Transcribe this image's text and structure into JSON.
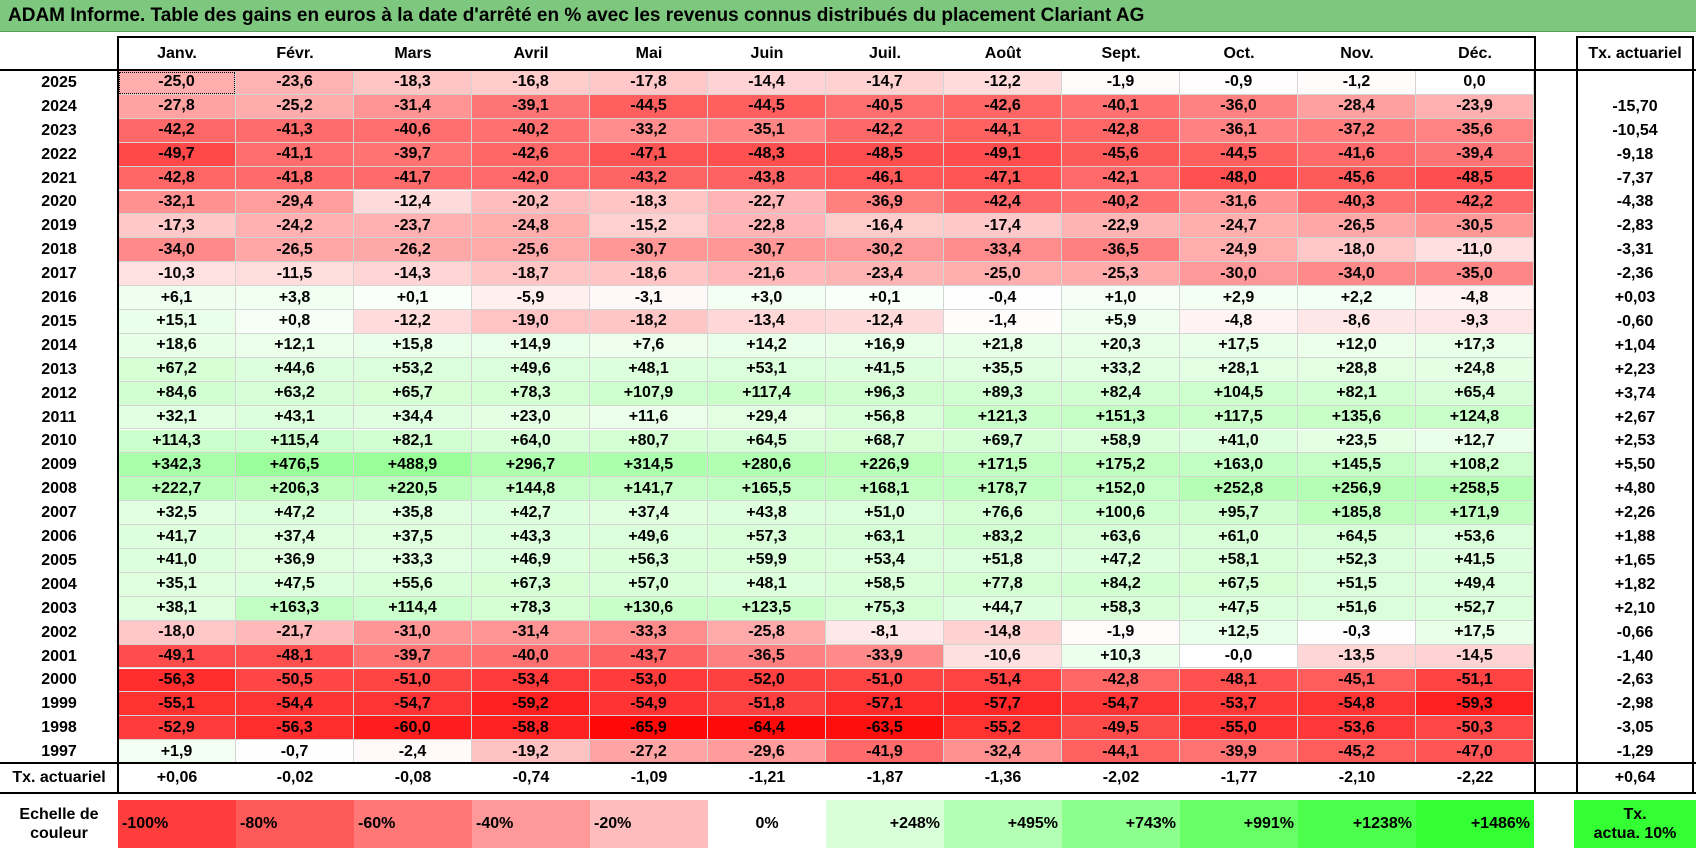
{
  "title": "ADAM Informe. Table des gains en euros à la date d'arrêté en % avec les revenus connus distribués du placement Clariant AG",
  "months": [
    "Janv.",
    "Févr.",
    "Mars",
    "Avril",
    "Mai",
    "Juin",
    "Juil.",
    "Août",
    "Sept.",
    "Oct.",
    "Nov.",
    "Déc."
  ],
  "rate_header": "Tx. actuariel",
  "rows": [
    {
      "year": "2025",
      "values": [
        "-25,0",
        "-23,6",
        "-18,3",
        "-16,8",
        "-17,8",
        "-14,4",
        "-14,7",
        "-12,2",
        "-1,9",
        "-0,9",
        "-1,2",
        "0,0"
      ],
      "rate": ""
    },
    {
      "year": "2024",
      "values": [
        "-27,8",
        "-25,2",
        "-31,4",
        "-39,1",
        "-44,5",
        "-44,5",
        "-40,5",
        "-42,6",
        "-40,1",
        "-36,0",
        "-28,4",
        "-23,9"
      ],
      "rate": "-15,70"
    },
    {
      "year": "2023",
      "values": [
        "-42,2",
        "-41,3",
        "-40,6",
        "-40,2",
        "-33,2",
        "-35,1",
        "-42,2",
        "-44,1",
        "-42,8",
        "-36,1",
        "-37,2",
        "-35,6"
      ],
      "rate": "-10,54"
    },
    {
      "year": "2022",
      "values": [
        "-49,7",
        "-41,1",
        "-39,7",
        "-42,6",
        "-47,1",
        "-48,3",
        "-48,5",
        "-49,1",
        "-45,6",
        "-44,5",
        "-41,6",
        "-39,4"
      ],
      "rate": "-9,18"
    },
    {
      "year": "2021",
      "values": [
        "-42,8",
        "-41,8",
        "-41,7",
        "-42,0",
        "-43,2",
        "-43,8",
        "-46,1",
        "-47,1",
        "-42,1",
        "-48,0",
        "-45,6",
        "-48,5"
      ],
      "rate": "-7,37"
    },
    {
      "year": "2020",
      "values": [
        "-32,1",
        "-29,4",
        "-12,4",
        "-20,2",
        "-18,3",
        "-22,7",
        "-36,9",
        "-42,4",
        "-40,2",
        "-31,6",
        "-40,3",
        "-42,2"
      ],
      "rate": "-4,38"
    },
    {
      "year": "2019",
      "values": [
        "-17,3",
        "-24,2",
        "-23,7",
        "-24,8",
        "-15,2",
        "-22,8",
        "-16,4",
        "-17,4",
        "-22,9",
        "-24,7",
        "-26,5",
        "-30,5"
      ],
      "rate": "-2,83"
    },
    {
      "year": "2018",
      "values": [
        "-34,0",
        "-26,5",
        "-26,2",
        "-25,6",
        "-30,7",
        "-30,7",
        "-30,2",
        "-33,4",
        "-36,5",
        "-24,9",
        "-18,0",
        "-11,0"
      ],
      "rate": "-3,31"
    },
    {
      "year": "2017",
      "values": [
        "-10,3",
        "-11,5",
        "-14,3",
        "-18,7",
        "-18,6",
        "-21,6",
        "-23,4",
        "-25,0",
        "-25,3",
        "-30,0",
        "-34,0",
        "-35,0"
      ],
      "rate": "-2,36"
    },
    {
      "year": "2016",
      "values": [
        "+6,1",
        "+3,8",
        "+0,1",
        "-5,9",
        "-3,1",
        "+3,0",
        "+0,1",
        "-0,4",
        "+1,0",
        "+2,9",
        "+2,2",
        "-4,8"
      ],
      "rate": "+0,03"
    },
    {
      "year": "2015",
      "values": [
        "+15,1",
        "+0,8",
        "-12,2",
        "-19,0",
        "-18,2",
        "-13,4",
        "-12,4",
        "-1,4",
        "+5,9",
        "-4,8",
        "-8,6",
        "-9,3"
      ],
      "rate": "-0,60"
    },
    {
      "year": "2014",
      "values": [
        "+18,6",
        "+12,1",
        "+15,8",
        "+14,9",
        "+7,6",
        "+14,2",
        "+16,9",
        "+21,8",
        "+20,3",
        "+17,5",
        "+12,0",
        "+17,3"
      ],
      "rate": "+1,04"
    },
    {
      "year": "2013",
      "values": [
        "+67,2",
        "+44,6",
        "+53,2",
        "+49,6",
        "+48,1",
        "+53,1",
        "+41,5",
        "+35,5",
        "+33,2",
        "+28,1",
        "+28,8",
        "+24,8"
      ],
      "rate": "+2,23"
    },
    {
      "year": "2012",
      "values": [
        "+84,6",
        "+63,2",
        "+65,7",
        "+78,3",
        "+107,9",
        "+117,4",
        "+96,3",
        "+89,3",
        "+82,4",
        "+104,5",
        "+82,1",
        "+65,4"
      ],
      "rate": "+3,74"
    },
    {
      "year": "2011",
      "values": [
        "+32,1",
        "+43,1",
        "+34,4",
        "+23,0",
        "+11,6",
        "+29,4",
        "+56,8",
        "+121,3",
        "+151,3",
        "+117,5",
        "+135,6",
        "+124,8"
      ],
      "rate": "+2,67"
    },
    {
      "year": "2010",
      "values": [
        "+114,3",
        "+115,4",
        "+82,1",
        "+64,0",
        "+80,7",
        "+64,5",
        "+68,7",
        "+69,7",
        "+58,9",
        "+41,0",
        "+23,5",
        "+12,7"
      ],
      "rate": "+2,53"
    },
    {
      "year": "2009",
      "values": [
        "+342,3",
        "+476,5",
        "+488,9",
        "+296,7",
        "+314,5",
        "+280,6",
        "+226,9",
        "+171,5",
        "+175,2",
        "+163,0",
        "+145,5",
        "+108,2"
      ],
      "rate": "+5,50"
    },
    {
      "year": "2008",
      "values": [
        "+222,7",
        "+206,3",
        "+220,5",
        "+144,8",
        "+141,7",
        "+165,5",
        "+168,1",
        "+178,7",
        "+152,0",
        "+252,8",
        "+256,9",
        "+258,5"
      ],
      "rate": "+4,80"
    },
    {
      "year": "2007",
      "values": [
        "+32,5",
        "+47,2",
        "+35,8",
        "+42,7",
        "+37,4",
        "+43,8",
        "+51,0",
        "+76,6",
        "+100,6",
        "+95,7",
        "+185,8",
        "+171,9"
      ],
      "rate": "+2,26"
    },
    {
      "year": "2006",
      "values": [
        "+41,7",
        "+37,4",
        "+37,5",
        "+43,3",
        "+49,6",
        "+57,3",
        "+63,1",
        "+83,2",
        "+63,6",
        "+61,0",
        "+64,5",
        "+53,6"
      ],
      "rate": "+1,88"
    },
    {
      "year": "2005",
      "values": [
        "+41,0",
        "+36,9",
        "+33,3",
        "+46,9",
        "+56,3",
        "+59,9",
        "+53,4",
        "+51,8",
        "+47,2",
        "+58,1",
        "+52,3",
        "+41,5"
      ],
      "rate": "+1,65"
    },
    {
      "year": "2004",
      "values": [
        "+35,1",
        "+47,5",
        "+55,6",
        "+67,3",
        "+57,0",
        "+48,1",
        "+58,5",
        "+77,8",
        "+84,2",
        "+67,5",
        "+51,5",
        "+49,4"
      ],
      "rate": "+1,82"
    },
    {
      "year": "2003",
      "values": [
        "+38,1",
        "+163,3",
        "+114,4",
        "+78,3",
        "+130,6",
        "+123,5",
        "+75,3",
        "+44,7",
        "+58,3",
        "+47,5",
        "+51,6",
        "+52,7"
      ],
      "rate": "+2,10"
    },
    {
      "year": "2002",
      "values": [
        "-18,0",
        "-21,7",
        "-31,0",
        "-31,4",
        "-33,3",
        "-25,8",
        "-8,1",
        "-14,8",
        "-1,9",
        "+12,5",
        "-0,3",
        "+17,5"
      ],
      "rate": "-0,66"
    },
    {
      "year": "2001",
      "values": [
        "-49,1",
        "-48,1",
        "-39,7",
        "-40,0",
        "-43,7",
        "-36,5",
        "-33,9",
        "-10,6",
        "+10,3",
        "-0,0",
        "-13,5",
        "-14,5"
      ],
      "rate": "-1,40"
    },
    {
      "year": "2000",
      "values": [
        "-56,3",
        "-50,5",
        "-51,0",
        "-53,4",
        "-53,0",
        "-52,0",
        "-51,0",
        "-51,4",
        "-42,8",
        "-48,1",
        "-45,1",
        "-51,1"
      ],
      "rate": "-2,63"
    },
    {
      "year": "1999",
      "values": [
        "-55,1",
        "-54,4",
        "-54,7",
        "-59,2",
        "-54,9",
        "-51,8",
        "-57,1",
        "-57,7",
        "-54,7",
        "-53,7",
        "-54,8",
        "-59,3"
      ],
      "rate": "-2,98"
    },
    {
      "year": "1998",
      "values": [
        "-52,9",
        "-56,3",
        "-60,0",
        "-58,8",
        "-65,9",
        "-64,4",
        "-63,5",
        "-55,2",
        "-49,5",
        "-55,0",
        "-53,6",
        "-50,3"
      ],
      "rate": "-3,05"
    },
    {
      "year": "1997",
      "values": [
        "+1,9",
        "-0,7",
        "-2,4",
        "-19,2",
        "-27,2",
        "-29,6",
        "-41,9",
        "-32,4",
        "-44,1",
        "-39,9",
        "-45,2",
        "-47,0"
      ],
      "rate": "-1,29"
    }
  ],
  "total_row": {
    "label": "Tx. actuariel",
    "values": [
      "+0,06",
      "-0,02",
      "-0,08",
      "-0,74",
      "-1,09",
      "-1,21",
      "-1,87",
      "-1,36",
      "-2,02",
      "-1,77",
      "-2,10",
      "-2,22"
    ],
    "rate": "+0,64"
  },
  "legend": {
    "label_line1": "Echelle de",
    "label_line2": "couleur",
    "scale": [
      "-100%",
      "-80%",
      "-60%",
      "-40%",
      "-20%",
      "0%",
      "+248%",
      "+495%",
      "+743%",
      "+991%",
      "+1238%",
      "+1486%"
    ],
    "rate_line1": "Tx.",
    "rate_line2": "actua. 10%"
  },
  "colors": {
    "title_bg": "#7ec77e",
    "negative_max": "#ff0000",
    "positive_max": "#33ff33",
    "neutral": "#ffffff"
  }
}
